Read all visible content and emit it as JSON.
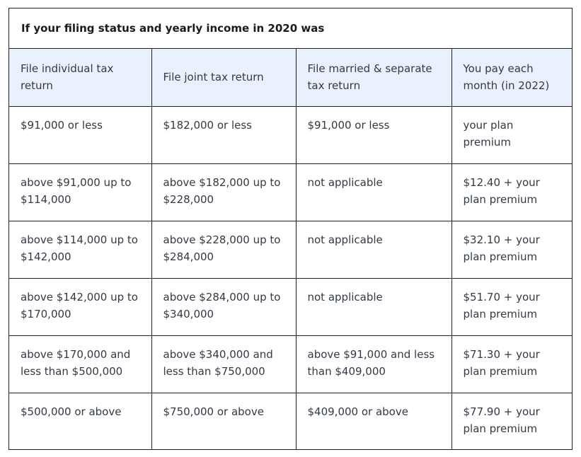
{
  "caption": "If your filing status and yearly income in 2020 was",
  "headers": [
    "File individual tax return",
    "File joint tax return",
    "File married & separate tax return",
    "You pay each month (in 2022)"
  ],
  "rows": [
    [
      "$91,000 or less",
      "$182,000 or less",
      "$91,000 or less",
      "your plan premium"
    ],
    [
      "above $91,000 up to $114,000",
      "above $182,000 up to $228,000",
      "not applicable",
      "$12.40 + your plan premium"
    ],
    [
      "above $114,000 up to $142,000",
      "above $228,000 up to $284,000",
      "not applicable",
      "$32.10 + your plan premium"
    ],
    [
      "above $142,000 up to $170,000",
      "above $284,000 up to $340,000",
      "not applicable",
      "$51.70 + your plan premium"
    ],
    [
      "above $170,000 and less than $500,000",
      "above $340,000 and less than $750,000",
      "above $91,000 and less than $409,000",
      "$71.30 + your plan premium"
    ],
    [
      "$500,000 or above",
      "$750,000 or above",
      "$409,000 or above",
      "$77.90 + your plan premium"
    ]
  ],
  "colors": {
    "header_bg": "#e9f1fe",
    "border": "#1f1f1f",
    "text": "#323a45"
  }
}
